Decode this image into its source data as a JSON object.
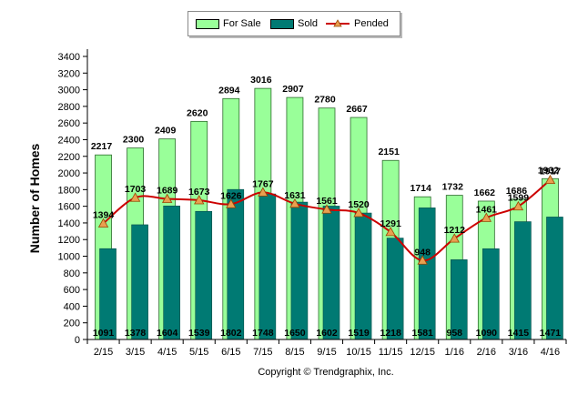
{
  "chart_data": {
    "type": "bar",
    "ylabel": "Number of Homes",
    "xlabel": "",
    "ylim": [
      0,
      3400
    ],
    "yticks": [
      0,
      200,
      400,
      600,
      800,
      1000,
      1200,
      1400,
      1600,
      1800,
      2000,
      2200,
      2400,
      2600,
      2800,
      3000,
      3200,
      3400
    ],
    "categories": [
      "2/15",
      "3/15",
      "4/15",
      "5/15",
      "6/15",
      "7/15",
      "8/15",
      "9/15",
      "10/15",
      "11/15",
      "12/15",
      "1/16",
      "2/16",
      "3/16",
      "4/16"
    ],
    "series": [
      {
        "name": "For Sale",
        "kind": "bar",
        "color": "#99ff99",
        "values": [
          2217,
          2300,
          2409,
          2620,
          2894,
          3016,
          2907,
          2780,
          2667,
          2151,
          1714,
          1732,
          1662,
          1686,
          1932
        ]
      },
      {
        "name": "Sold",
        "kind": "bar",
        "color": "#007a73",
        "values": [
          1091,
          1378,
          1604,
          1539,
          1802,
          1748,
          1650,
          1602,
          1519,
          1218,
          1581,
          958,
          1090,
          1415,
          1471
        ]
      },
      {
        "name": "Pended",
        "kind": "line",
        "color": "#cc0000",
        "values": [
          1394,
          1703,
          1689,
          1673,
          1626,
          1767,
          1631,
          1561,
          1520,
          1291,
          948,
          1212,
          1461,
          1599,
          1917
        ]
      }
    ],
    "legend_position": "top-center",
    "grid": false,
    "copyright": "Copyright © Trendgraphix, Inc."
  }
}
